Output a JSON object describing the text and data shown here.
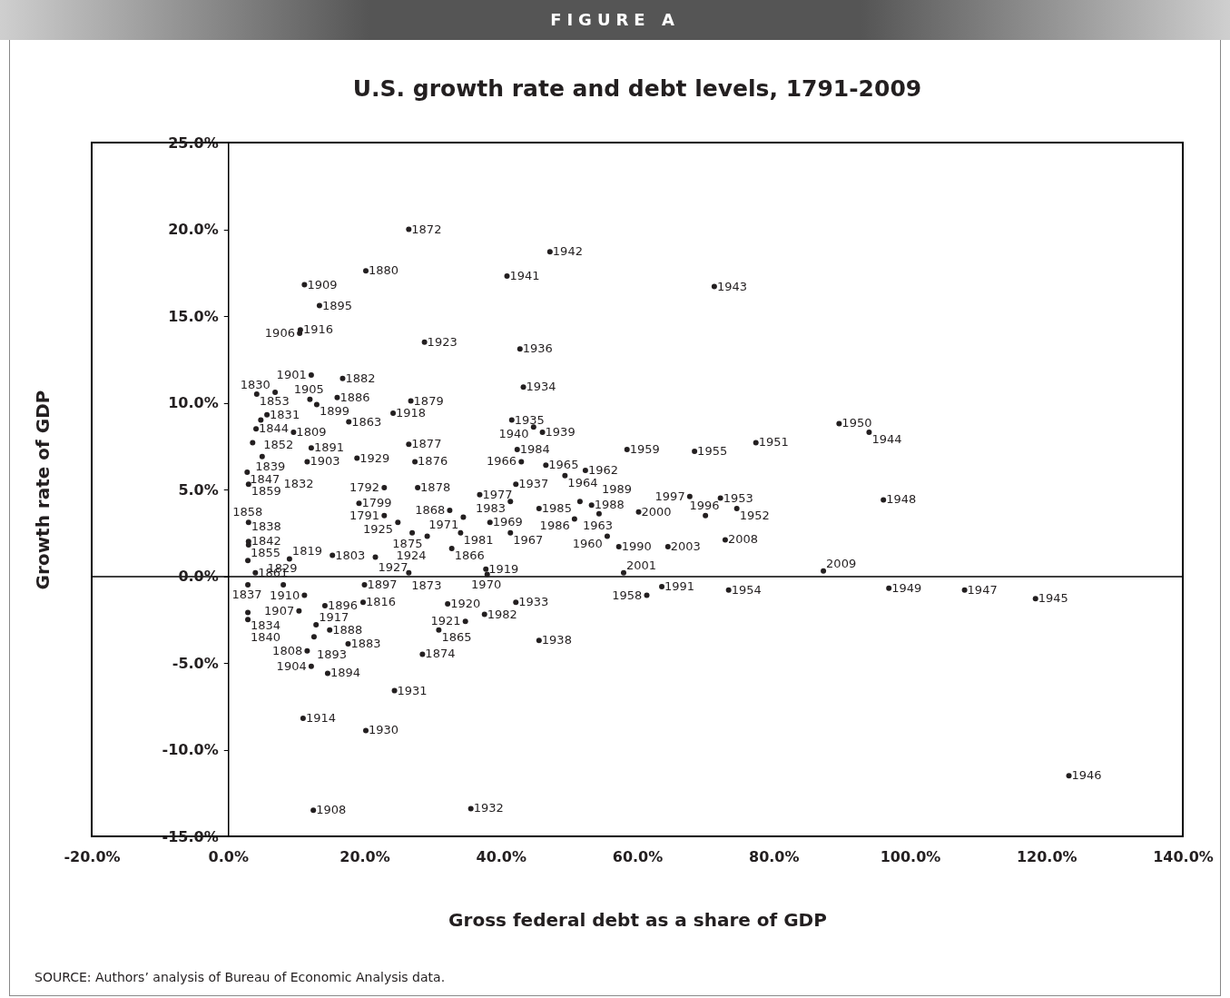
{
  "chart_data": {
    "type": "scatter",
    "title": "U.S. growth rate and debt levels, 1791-2009",
    "xlabel": "Gross federal debt as a share of GDP",
    "ylabel": "Growth rate of GDP",
    "annotations": [
      "FIGURE A",
      "SOURCE: Authors’ analysis of Bureau of Economic Analysis data.",
      {
        "text": "1872",
        "x": 26.5,
        "y": 20.0
      },
      {
        "text": "1942",
        "x": 47.2,
        "y": 18.7
      },
      {
        "text": "1880",
        "x": 20.2,
        "y": 17.6
      },
      {
        "text": "1941",
        "x": 40.9,
        "y": 17.3
      },
      {
        "text": "1909",
        "x": 11.2,
        "y": 16.8
      },
      {
        "text": "1943",
        "x": 71.3,
        "y": 16.7
      },
      {
        "text": "1895",
        "x": 13.4,
        "y": 15.6
      },
      {
        "text": "1916",
        "x": 10.6,
        "y": 14.2
      },
      {
        "text": "1906",
        "x": 10.5,
        "y": 14.0
      },
      {
        "text": "1923",
        "x": 28.8,
        "y": 13.5
      },
      {
        "text": "1936",
        "x": 42.8,
        "y": 13.1
      },
      {
        "text": "1901",
        "x": 12.2,
        "y": 11.6
      },
      {
        "text": "1882",
        "x": 16.8,
        "y": 11.4
      },
      {
        "text": "1934",
        "x": 43.3,
        "y": 10.9
      },
      {
        "text": "1853",
        "x": 4.2,
        "y": 10.5
      },
      {
        "text": "1830",
        "x": 6.9,
        "y": 10.6
      },
      {
        "text": "1905",
        "x": 12.0,
        "y": 10.2
      },
      {
        "text": "1886",
        "x": 16.0,
        "y": 10.3
      },
      {
        "text": "1899",
        "x": 13.0,
        "y": 9.9
      },
      {
        "text": "1879",
        "x": 26.8,
        "y": 10.1
      },
      {
        "text": "1918",
        "x": 24.2,
        "y": 9.4
      },
      {
        "text": "1863",
        "x": 17.7,
        "y": 8.9
      },
      {
        "text": "1831",
        "x": 5.7,
        "y": 9.3
      },
      {
        "text": "1852",
        "x": 4.8,
        "y": 9.0
      },
      {
        "text": "1935",
        "x": 41.6,
        "y": 9.0
      },
      {
        "text": "1940",
        "x": 44.8,
        "y": 8.6
      },
      {
        "text": "1939",
        "x": 46.1,
        "y": 8.3
      },
      {
        "text": "1844",
        "x": 4.1,
        "y": 8.5
      },
      {
        "text": "1809",
        "x": 9.6,
        "y": 8.3
      },
      {
        "text": "1839",
        "x": 3.6,
        "y": 7.7
      },
      {
        "text": "1891",
        "x": 12.2,
        "y": 7.4
      },
      {
        "text": "1877",
        "x": 26.5,
        "y": 7.6
      },
      {
        "text": "1984",
        "x": 42.4,
        "y": 7.3
      },
      {
        "text": "1959",
        "x": 58.5,
        "y": 7.3
      },
      {
        "text": "1955",
        "x": 68.4,
        "y": 7.2
      },
      {
        "text": "1951",
        "x": 77.4,
        "y": 7.7
      },
      {
        "text": "1950",
        "x": 89.6,
        "y": 8.8
      },
      {
        "text": "1944",
        "x": 94.0,
        "y": 8.3
      },
      {
        "text": "1876",
        "x": 27.4,
        "y": 6.6
      },
      {
        "text": "1929",
        "x": 18.9,
        "y": 6.8
      },
      {
        "text": "1903",
        "x": 11.6,
        "y": 6.6
      },
      {
        "text": "1966",
        "x": 43.0,
        "y": 6.6
      },
      {
        "text": "1965",
        "x": 46.6,
        "y": 6.4
      },
      {
        "text": "1964",
        "x": 49.4,
        "y": 5.8
      },
      {
        "text": "1962",
        "x": 52.4,
        "y": 6.1
      },
      {
        "text": "1878",
        "x": 27.8,
        "y": 5.1
      },
      {
        "text": "1792",
        "x": 22.9,
        "y": 5.1
      },
      {
        "text": "1937",
        "x": 42.2,
        "y": 5.3
      },
      {
        "text": "1799",
        "x": 19.2,
        "y": 4.2
      },
      {
        "text": "1977",
        "x": 36.9,
        "y": 4.7
      },
      {
        "text": "1983",
        "x": 41.4,
        "y": 4.3
      },
      {
        "text": "1868",
        "x": 32.5,
        "y": 3.8
      },
      {
        "text": "1971",
        "x": 34.5,
        "y": 3.4
      },
      {
        "text": "1969",
        "x": 38.4,
        "y": 3.1
      },
      {
        "text": "1967",
        "x": 41.4,
        "y": 2.5
      },
      {
        "text": "1981",
        "x": 34.1,
        "y": 2.5
      },
      {
        "text": "1875",
        "x": 29.2,
        "y": 2.3
      },
      {
        "text": "1924",
        "x": 27.0,
        "y": 2.5
      },
      {
        "text": "1866",
        "x": 32.8,
        "y": 1.6
      },
      {
        "text": "1791",
        "x": 22.9,
        "y": 3.5
      },
      {
        "text": "1925",
        "x": 24.9,
        "y": 3.1
      },
      {
        "text": "1985",
        "x": 45.6,
        "y": 3.9
      },
      {
        "text": "1963",
        "x": 51.6,
        "y": 4.3
      },
      {
        "text": "1988",
        "x": 53.3,
        "y": 4.1
      },
      {
        "text": "1986",
        "x": 50.8,
        "y": 3.3
      },
      {
        "text": "1989",
        "x": 54.4,
        "y": 3.6
      },
      {
        "text": "2000",
        "x": 60.2,
        "y": 3.7
      },
      {
        "text": "1953",
        "x": 72.2,
        "y": 4.5
      },
      {
        "text": "1952",
        "x": 74.6,
        "y": 3.9
      },
      {
        "text": "1997",
        "x": 67.7,
        "y": 4.6
      },
      {
        "text": "1996",
        "x": 70.0,
        "y": 3.5
      },
      {
        "text": "1960",
        "x": 55.6,
        "y": 2.3
      },
      {
        "text": "2008",
        "x": 72.9,
        "y": 2.1
      },
      {
        "text": "1990",
        "x": 57.3,
        "y": 1.7
      },
      {
        "text": "2003",
        "x": 64.5,
        "y": 1.7
      },
      {
        "text": "2009",
        "x": 87.3,
        "y": 0.3
      },
      {
        "text": "2001",
        "x": 58.0,
        "y": 0.2
      },
      {
        "text": "1991",
        "x": 63.6,
        "y": -0.6
      },
      {
        "text": "1958",
        "x": 61.4,
        "y": -1.1
      },
      {
        "text": "1954",
        "x": 73.4,
        "y": -0.8
      },
      {
        "text": "1948",
        "x": 96.1,
        "y": 4.4
      },
      {
        "text": "1949",
        "x": 96.9,
        "y": -0.7
      },
      {
        "text": "1947",
        "x": 108.0,
        "y": -0.8
      },
      {
        "text": "1945",
        "x": 118.4,
        "y": -1.3
      },
      {
        "text": "1946",
        "x": 123.3,
        "y": -11.5
      },
      {
        "text": "1873",
        "x": 26.5,
        "y": 0.2
      },
      {
        "text": "1919",
        "x": 37.8,
        "y": 0.4
      },
      {
        "text": "1970",
        "x": 38.0,
        "y": 0.1
      },
      {
        "text": "1920",
        "x": 32.2,
        "y": -1.6
      },
      {
        "text": "1933",
        "x": 42.2,
        "y": -1.5
      },
      {
        "text": "1982",
        "x": 37.6,
        "y": -2.2
      },
      {
        "text": "1921",
        "x": 34.8,
        "y": -2.6
      },
      {
        "text": "1865",
        "x": 30.9,
        "y": -3.1
      },
      {
        "text": "1938",
        "x": 45.6,
        "y": -3.7
      },
      {
        "text": "1874",
        "x": 28.5,
        "y": -4.5
      },
      {
        "text": "1931",
        "x": 24.4,
        "y": -6.6
      },
      {
        "text": "1914",
        "x": 11.0,
        "y": -8.2
      },
      {
        "text": "1930",
        "x": 20.2,
        "y": -8.9
      },
      {
        "text": "1908",
        "x": 12.5,
        "y": -13.5
      },
      {
        "text": "1932",
        "x": 35.6,
        "y": -13.4
      },
      {
        "text": "1816",
        "x": 19.8,
        "y": -1.5
      },
      {
        "text": "1896",
        "x": 14.2,
        "y": -1.7
      },
      {
        "text": "1907",
        "x": 10.4,
        "y": -2.0
      },
      {
        "text": "1910",
        "x": 11.2,
        "y": -1.1
      },
      {
        "text": "1829",
        "x": 8.1,
        "y": -0.5
      },
      {
        "text": "1837",
        "x": 2.9,
        "y": -0.5
      },
      {
        "text": "1834",
        "x": 2.9,
        "y": -2.1
      },
      {
        "text": "1840",
        "x": 2.9,
        "y": -2.5
      },
      {
        "text": "1917",
        "x": 12.9,
        "y": -2.8
      },
      {
        "text": "1888",
        "x": 14.9,
        "y": -3.1
      },
      {
        "text": "1893",
        "x": 12.6,
        "y": -3.5
      },
      {
        "text": "1883",
        "x": 17.6,
        "y": -3.9
      },
      {
        "text": "1808",
        "x": 11.6,
        "y": -4.3
      },
      {
        "text": "1904",
        "x": 12.2,
        "y": -5.2
      },
      {
        "text": "1894",
        "x": 14.6,
        "y": -5.6
      },
      {
        "text": "1897",
        "x": 20.0,
        "y": -0.5
      },
      {
        "text": "1842",
        "x": 3.0,
        "y": 2.0
      },
      {
        "text": "1838",
        "x": 3.0,
        "y": 1.8
      },
      {
        "text": "1855",
        "x": 2.9,
        "y": 0.9
      },
      {
        "text": "1819",
        "x": 9.0,
        "y": 1.0
      },
      {
        "text": "1803",
        "x": 15.3,
        "y": 1.2
      },
      {
        "text": "1927",
        "x": 21.6,
        "y": 1.1
      },
      {
        "text": "1861",
        "x": 4.0,
        "y": 0.2
      },
      {
        "text": "1858",
        "x": 3.0,
        "y": 3.1
      },
      {
        "text": "1847",
        "x": 2.8,
        "y": 6.0
      },
      {
        "text": "1859",
        "x": 3.0,
        "y": 5.3
      },
      {
        "text": "1832",
        "x": 5.0,
        "y": 6.9
      }
    ],
    "xlim": [
      -20,
      140
    ],
    "xticks": [
      {
        "value": -20,
        "label": "-20.0%"
      },
      {
        "value": 0,
        "label": "0.0%"
      },
      {
        "value": 20,
        "label": "20.0%"
      },
      {
        "value": 40,
        "label": "40.0%"
      },
      {
        "value": 60,
        "label": "60.0%"
      },
      {
        "value": 80,
        "label": "80.0%"
      },
      {
        "value": 100,
        "label": "100.0%"
      },
      {
        "value": 120,
        "label": "120.0%"
      },
      {
        "value": 140,
        "label": "140.0%"
      }
    ],
    "ylim": [
      -15,
      25
    ],
    "yticks": [
      {
        "value": -15,
        "label": "-15.0%"
      },
      {
        "value": -10,
        "label": "-10.0%"
      },
      {
        "value": -5,
        "label": "-5.0%"
      },
      {
        "value": 0,
        "label": "0.0%"
      },
      {
        "value": 5,
        "label": "5.0%"
      },
      {
        "value": 10,
        "label": "10.0%"
      },
      {
        "value": 15,
        "label": "15.0%"
      },
      {
        "value": 20,
        "label": "20.0%"
      },
      {
        "value": 25,
        "label": "25.0%"
      }
    ],
    "marker": "circle",
    "series": [
      {
        "color": "#231f20",
        "x": [
          26.5,
          47.2,
          20.2,
          40.9,
          11.2,
          71.3,
          13.4,
          10.6,
          10.5,
          28.8,
          42.8,
          12.2,
          16.8,
          43.3,
          4.2,
          6.9,
          12.0,
          16.0,
          13.0,
          26.8,
          24.2,
          17.7,
          5.7,
          4.8,
          41.6,
          44.8,
          46.1,
          4.1,
          9.6,
          3.6,
          12.2,
          26.5,
          42.4,
          58.5,
          68.4,
          77.4,
          89.6,
          94.0,
          27.4,
          18.9,
          11.6,
          43.0,
          46.6,
          49.4,
          52.4,
          27.8,
          22.9,
          42.2,
          19.2,
          36.9,
          41.4,
          32.5,
          34.5,
          38.4,
          41.4,
          34.1,
          29.2,
          27.0,
          32.8,
          22.9,
          24.9,
          45.6,
          51.6,
          53.3,
          50.8,
          54.4,
          60.2,
          72.2,
          74.6,
          67.7,
          70.0,
          55.6,
          72.9,
          57.3,
          64.5,
          87.3,
          58.0,
          63.6,
          61.4,
          73.4,
          96.1,
          96.9,
          108.0,
          118.4,
          123.3,
          26.5,
          37.8,
          38.0,
          32.2,
          42.2,
          37.6,
          34.8,
          30.9,
          45.6,
          28.5,
          24.4,
          11.0,
          20.2,
          12.5,
          35.6,
          19.8,
          14.2,
          10.4,
          11.2,
          8.1,
          2.9,
          2.9,
          2.9,
          12.9,
          14.9,
          12.6,
          17.6,
          11.6,
          12.2,
          14.6,
          20.0,
          3.0,
          3.0,
          2.9,
          9.0,
          15.3,
          21.6,
          4.0,
          3.0,
          2.8,
          3.0,
          5.0
        ],
        "values": [
          20.0,
          18.7,
          17.6,
          17.3,
          16.8,
          16.7,
          15.6,
          14.2,
          14.0,
          13.5,
          13.1,
          11.6,
          11.4,
          10.9,
          10.5,
          10.6,
          10.2,
          10.3,
          9.9,
          10.1,
          9.4,
          8.9,
          9.3,
          9.0,
          9.0,
          8.6,
          8.3,
          8.5,
          8.3,
          7.7,
          7.4,
          7.6,
          7.3,
          7.3,
          7.2,
          7.7,
          8.8,
          8.3,
          6.6,
          6.8,
          6.6,
          6.6,
          6.4,
          5.8,
          6.1,
          5.1,
          5.1,
          5.3,
          4.2,
          4.7,
          4.3,
          3.8,
          3.4,
          3.1,
          2.5,
          2.5,
          2.3,
          2.5,
          1.6,
          3.5,
          3.1,
          3.9,
          4.3,
          4.1,
          3.3,
          3.6,
          3.7,
          4.5,
          3.9,
          4.6,
          3.5,
          2.3,
          2.1,
          1.7,
          1.7,
          0.3,
          0.2,
          -0.6,
          -1.1,
          -0.8,
          4.4,
          -0.7,
          -0.8,
          -1.3,
          -11.5,
          0.2,
          0.4,
          0.1,
          -1.6,
          -1.5,
          -2.2,
          -2.6,
          -3.1,
          -3.7,
          -4.5,
          -6.6,
          -8.2,
          -8.9,
          -13.5,
          -13.4,
          -1.5,
          -1.7,
          -2.0,
          -1.1,
          -0.5,
          -0.5,
          -2.1,
          -2.5,
          -2.8,
          -3.1,
          -3.5,
          -3.9,
          -4.3,
          -5.2,
          -5.6,
          -0.5,
          2.0,
          1.8,
          0.9,
          1.0,
          1.2,
          1.1,
          0.2,
          3.1,
          6.0,
          5.3,
          6.9
        ]
      }
    ]
  }
}
